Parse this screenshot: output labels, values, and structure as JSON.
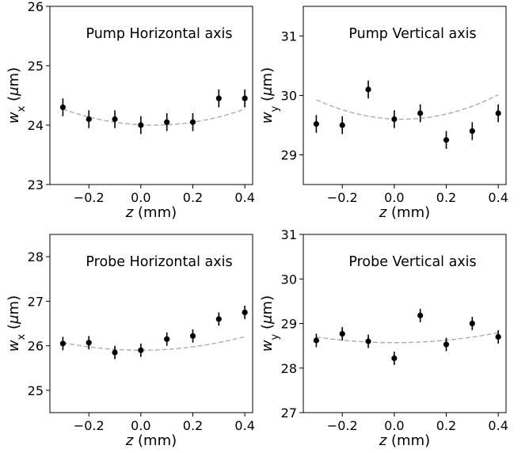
{
  "chart_data": [
    {
      "type": "scatter",
      "title": "Pump Horizontal axis",
      "xlabel": "z (mm)",
      "ylabel": "w_x (μm)",
      "xlim": [
        -0.35,
        0.43
      ],
      "ylim": [
        23,
        26
      ],
      "x_ticks": [
        -0.2,
        0.0,
        0.2,
        0.4
      ],
      "x_tick_labels": [
        "−0.2",
        "0.0",
        "0.2",
        "0.4"
      ],
      "y_ticks": [
        23,
        24,
        25,
        26
      ],
      "y_tick_labels": [
        "23",
        "24",
        "25",
        "26"
      ],
      "grid": false,
      "series": [
        {
          "x": [
            -0.3,
            -0.2,
            -0.1,
            0.0,
            0.1,
            0.2,
            0.3,
            0.4
          ],
          "y": [
            24.3,
            24.1,
            24.1,
            24.0,
            24.05,
            24.05,
            24.45,
            24.45
          ],
          "yerr": [
            0.15,
            0.15,
            0.15,
            0.15,
            0.15,
            0.15,
            0.15,
            0.15
          ]
        }
      ],
      "fit": {
        "style": "dashed",
        "color": "#a8a8a8",
        "vertex_x": 0.05,
        "vertex_y": 24.0,
        "curvature": 2.2
      }
    },
    {
      "type": "scatter",
      "title": "Pump Vertical axis",
      "xlabel": "z (mm)",
      "ylabel": "w_y (μm)",
      "xlim": [
        -0.35,
        0.43
      ],
      "ylim": [
        28.5,
        31.5
      ],
      "x_ticks": [
        -0.2,
        0.0,
        0.2,
        0.4
      ],
      "x_tick_labels": [
        "−0.2",
        "0.0",
        "0.2",
        "0.4"
      ],
      "y_ticks": [
        29,
        30,
        31
      ],
      "y_tick_labels": [
        "29",
        "30",
        "31"
      ],
      "grid": false,
      "series": [
        {
          "x": [
            -0.3,
            -0.2,
            -0.1,
            0.0,
            0.1,
            0.2,
            0.3,
            0.4
          ],
          "y": [
            29.52,
            29.5,
            30.1,
            29.6,
            29.7,
            29.25,
            29.4,
            29.7
          ],
          "yerr": [
            0.15,
            0.15,
            0.15,
            0.15,
            0.15,
            0.15,
            0.15,
            0.15
          ]
        }
      ],
      "fit": {
        "style": "dashed",
        "color": "#a8a8a8",
        "vertex_x": 0.03,
        "vertex_y": 29.6,
        "curvature": 3.0
      }
    },
    {
      "type": "scatter",
      "title": "Probe Horizontal axis",
      "xlabel": "z (mm)",
      "ylabel": "w_x (μm)",
      "xlim": [
        -0.35,
        0.43
      ],
      "ylim": [
        24.5,
        28.5
      ],
      "x_ticks": [
        -0.2,
        0.0,
        0.2,
        0.4
      ],
      "x_tick_labels": [
        "−0.2",
        "0.0",
        "0.2",
        "0.4"
      ],
      "y_ticks": [
        25,
        26,
        27,
        28
      ],
      "y_tick_labels": [
        "25",
        "26",
        "27",
        "28"
      ],
      "grid": false,
      "series": [
        {
          "x": [
            -0.3,
            -0.2,
            -0.1,
            0.0,
            0.1,
            0.2,
            0.3,
            0.4
          ],
          "y": [
            26.05,
            26.07,
            25.85,
            25.9,
            26.15,
            26.22,
            26.6,
            26.75
          ],
          "yerr": [
            0.15,
            0.15,
            0.15,
            0.15,
            0.15,
            0.15,
            0.15,
            0.15
          ]
        }
      ],
      "fit": {
        "style": "dashed",
        "color": "#a8a8a8",
        "vertex_x": 0.0,
        "vertex_y": 25.9,
        "curvature": 1.9
      }
    },
    {
      "type": "scatter",
      "title": "Probe Vertical axis",
      "xlabel": "z (mm)",
      "ylabel": "w_y (μm)",
      "xlim": [
        -0.35,
        0.43
      ],
      "ylim": [
        27,
        31
      ],
      "x_ticks": [
        -0.2,
        0.0,
        0.2,
        0.4
      ],
      "x_tick_labels": [
        "−0.2",
        "0.0",
        "0.2",
        "0.4"
      ],
      "y_ticks": [
        27,
        28,
        29,
        30,
        31
      ],
      "y_tick_labels": [
        "27",
        "28",
        "29",
        "30",
        "31"
      ],
      "grid": false,
      "series": [
        {
          "x": [
            -0.3,
            -0.2,
            -0.1,
            0.0,
            0.1,
            0.2,
            0.3,
            0.4
          ],
          "y": [
            28.62,
            28.77,
            28.6,
            28.22,
            29.18,
            28.53,
            29.0,
            28.7
          ],
          "yerr": [
            0.15,
            0.15,
            0.15,
            0.15,
            0.15,
            0.15,
            0.15,
            0.15
          ]
        }
      ],
      "fit": {
        "style": "dashed",
        "color": "#a8a8a8",
        "vertex_x": 0.0,
        "vertex_y": 28.57,
        "curvature": 1.4
      }
    }
  ]
}
